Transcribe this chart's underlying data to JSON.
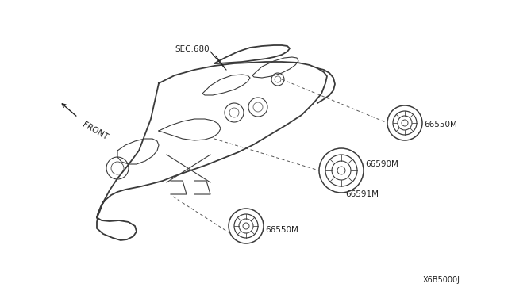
{
  "background_color": "#ffffff",
  "line_color": "#3a3a3a",
  "dashed_color": "#555555",
  "text_color": "#222222",
  "fig_width": 6.4,
  "fig_height": 3.72,
  "dpi": 100,
  "labels": {
    "sec680": "SEC.680",
    "front": "FRONT",
    "p66550_top": "66550M",
    "p66550_bot": "66550M",
    "p66590": "66590M",
    "p66591": "66591M",
    "part_code": "X6B5000J"
  }
}
